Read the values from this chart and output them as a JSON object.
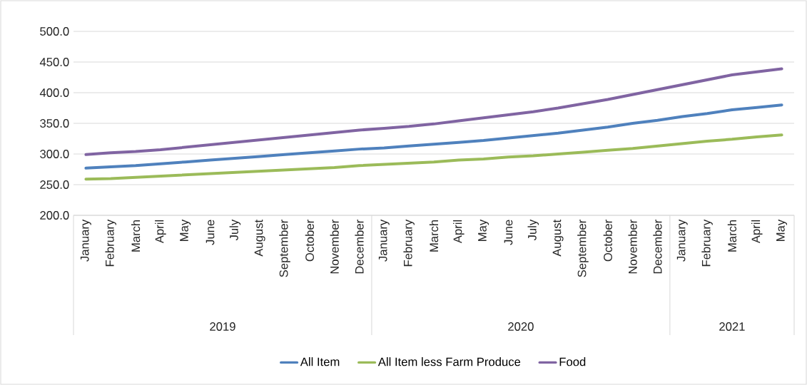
{
  "chart_data": {
    "type": "line",
    "categories": [
      "January",
      "February",
      "March",
      "April",
      "May",
      "June",
      "July",
      "August",
      "September",
      "October",
      "November",
      "December",
      "January",
      "February",
      "March",
      "April",
      "May",
      "June",
      "July",
      "August",
      "September",
      "October",
      "November",
      "December",
      "January",
      "February",
      "March",
      "April",
      "May"
    ],
    "annotations": [
      "2019",
      "2020",
      "2021"
    ],
    "series": [
      {
        "name": "All Item",
        "color": "#4f81bd",
        "values": [
          277,
          279,
          281,
          284,
          287,
          290,
          293,
          296,
          299,
          302,
          305,
          308,
          310,
          313,
          316,
          319,
          322,
          326,
          330,
          334,
          339,
          344,
          350,
          355,
          361,
          366,
          372,
          376,
          380
        ]
      },
      {
        "name": "All Item less Farm Produce",
        "color": "#9bbb59",
        "values": [
          259,
          260,
          262,
          264,
          266,
          268,
          270,
          272,
          274,
          276,
          278,
          281,
          283,
          285,
          287,
          290,
          292,
          295,
          297,
          300,
          303,
          306,
          309,
          313,
          317,
          321,
          324,
          328,
          331
        ]
      },
      {
        "name": "Food",
        "color": "#8064a2",
        "values": [
          299,
          302,
          304,
          307,
          311,
          315,
          319,
          323,
          327,
          331,
          335,
          339,
          342,
          345,
          349,
          354,
          359,
          364,
          369,
          375,
          382,
          389,
          397,
          405,
          413,
          421,
          429,
          434,
          439
        ]
      }
    ],
    "ylim": [
      200,
      500
    ],
    "yticks": [
      {
        "value": 200,
        "label": "200.0"
      },
      {
        "value": 250,
        "label": "250.0"
      },
      {
        "value": 300,
        "label": "300.0"
      },
      {
        "value": 350,
        "label": "350.0"
      },
      {
        "value": 400,
        "label": "400.0"
      },
      {
        "value": 450,
        "label": "450.0"
      },
      {
        "value": 500,
        "label": "500.0"
      }
    ],
    "grid": "y",
    "legend": "bottom",
    "marker": "none",
    "line_style": "solid"
  }
}
